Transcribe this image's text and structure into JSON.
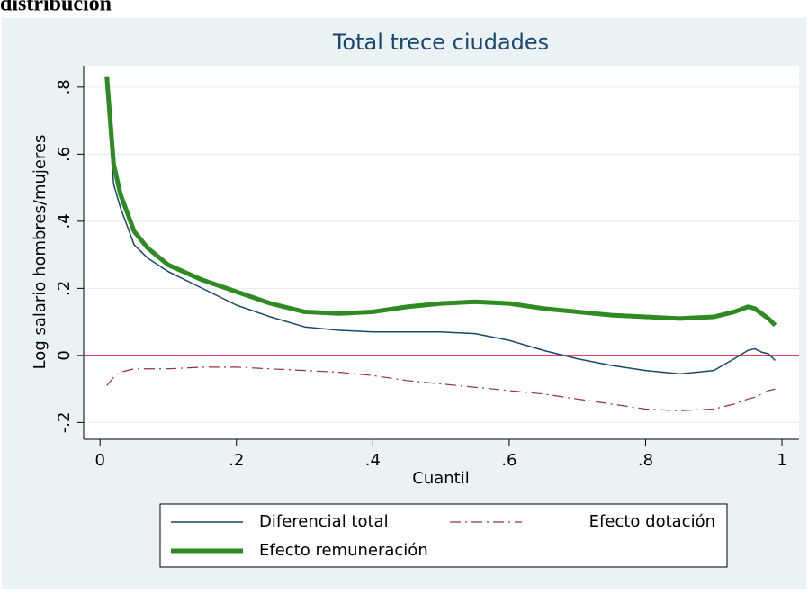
{
  "caption": "distribución",
  "chart_data": {
    "type": "line",
    "title": "Total trece ciudades",
    "x_label": "Cuantil",
    "y_label": "Log salario hombres/mujeres",
    "x": [
      0.01,
      0.02,
      0.03,
      0.05,
      0.07,
      0.1,
      0.15,
      0.2,
      0.25,
      0.3,
      0.35,
      0.4,
      0.45,
      0.5,
      0.55,
      0.6,
      0.65,
      0.7,
      0.75,
      0.8,
      0.85,
      0.9,
      0.93,
      0.95,
      0.96,
      0.97,
      0.98,
      0.99
    ],
    "series": [
      {
        "name": "Diferencial total",
        "color": "#1a476f",
        "width": 1.5,
        "dash": "none",
        "values": [
          0.78,
          0.51,
          0.44,
          0.33,
          0.29,
          0.25,
          0.2,
          0.15,
          0.115,
          0.085,
          0.075,
          0.07,
          0.07,
          0.07,
          0.065,
          0.045,
          0.015,
          -0.01,
          -0.03,
          -0.045,
          -0.055,
          -0.045,
          -0.01,
          0.015,
          0.02,
          0.01,
          0.005,
          -0.015
        ]
      },
      {
        "name": "Efecto dotación",
        "color": "#90353b",
        "width": 1.2,
        "dash": "12 5 2 5",
        "values": [
          -0.09,
          -0.065,
          -0.05,
          -0.04,
          -0.04,
          -0.04,
          -0.035,
          -0.035,
          -0.04,
          -0.045,
          -0.05,
          -0.06,
          -0.075,
          -0.085,
          -0.095,
          -0.105,
          -0.115,
          -0.13,
          -0.145,
          -0.16,
          -0.165,
          -0.16,
          -0.145,
          -0.13,
          -0.125,
          -0.115,
          -0.105,
          -0.1
        ]
      },
      {
        "name": "Efecto remuneración",
        "color": "#2e8b22",
        "width": 5,
        "dash": "none",
        "values": [
          0.83,
          0.57,
          0.48,
          0.37,
          0.32,
          0.27,
          0.225,
          0.19,
          0.155,
          0.13,
          0.125,
          0.13,
          0.145,
          0.155,
          0.16,
          0.155,
          0.14,
          0.13,
          0.12,
          0.115,
          0.11,
          0.115,
          0.13,
          0.145,
          0.14,
          0.125,
          0.11,
          0.09
        ]
      }
    ],
    "xlim": [
      -0.024,
      1.025
    ],
    "ylim": [
      -0.25,
      0.864
    ],
    "xticks": [
      0,
      {
        "value": 0.2,
        "label": ".2"
      },
      {
        "value": 0.4,
        "label": ".4"
      },
      {
        "value": 0.6,
        "label": ".6"
      },
      {
        "value": 0.8,
        "label": ".8"
      },
      1
    ],
    "yticks": [
      {
        "value": -0.2,
        "label": "-.2"
      },
      0,
      {
        "value": 0.2,
        "label": ".2"
      },
      {
        "value": 0.4,
        "label": ".4"
      },
      {
        "value": 0.6,
        "label": ".6"
      },
      {
        "value": 0.8,
        "label": ".8"
      }
    ],
    "grid": true,
    "reference_line": {
      "value": 0,
      "color": "#d9264d"
    },
    "legend": "bottom",
    "legend_columns": 2
  }
}
